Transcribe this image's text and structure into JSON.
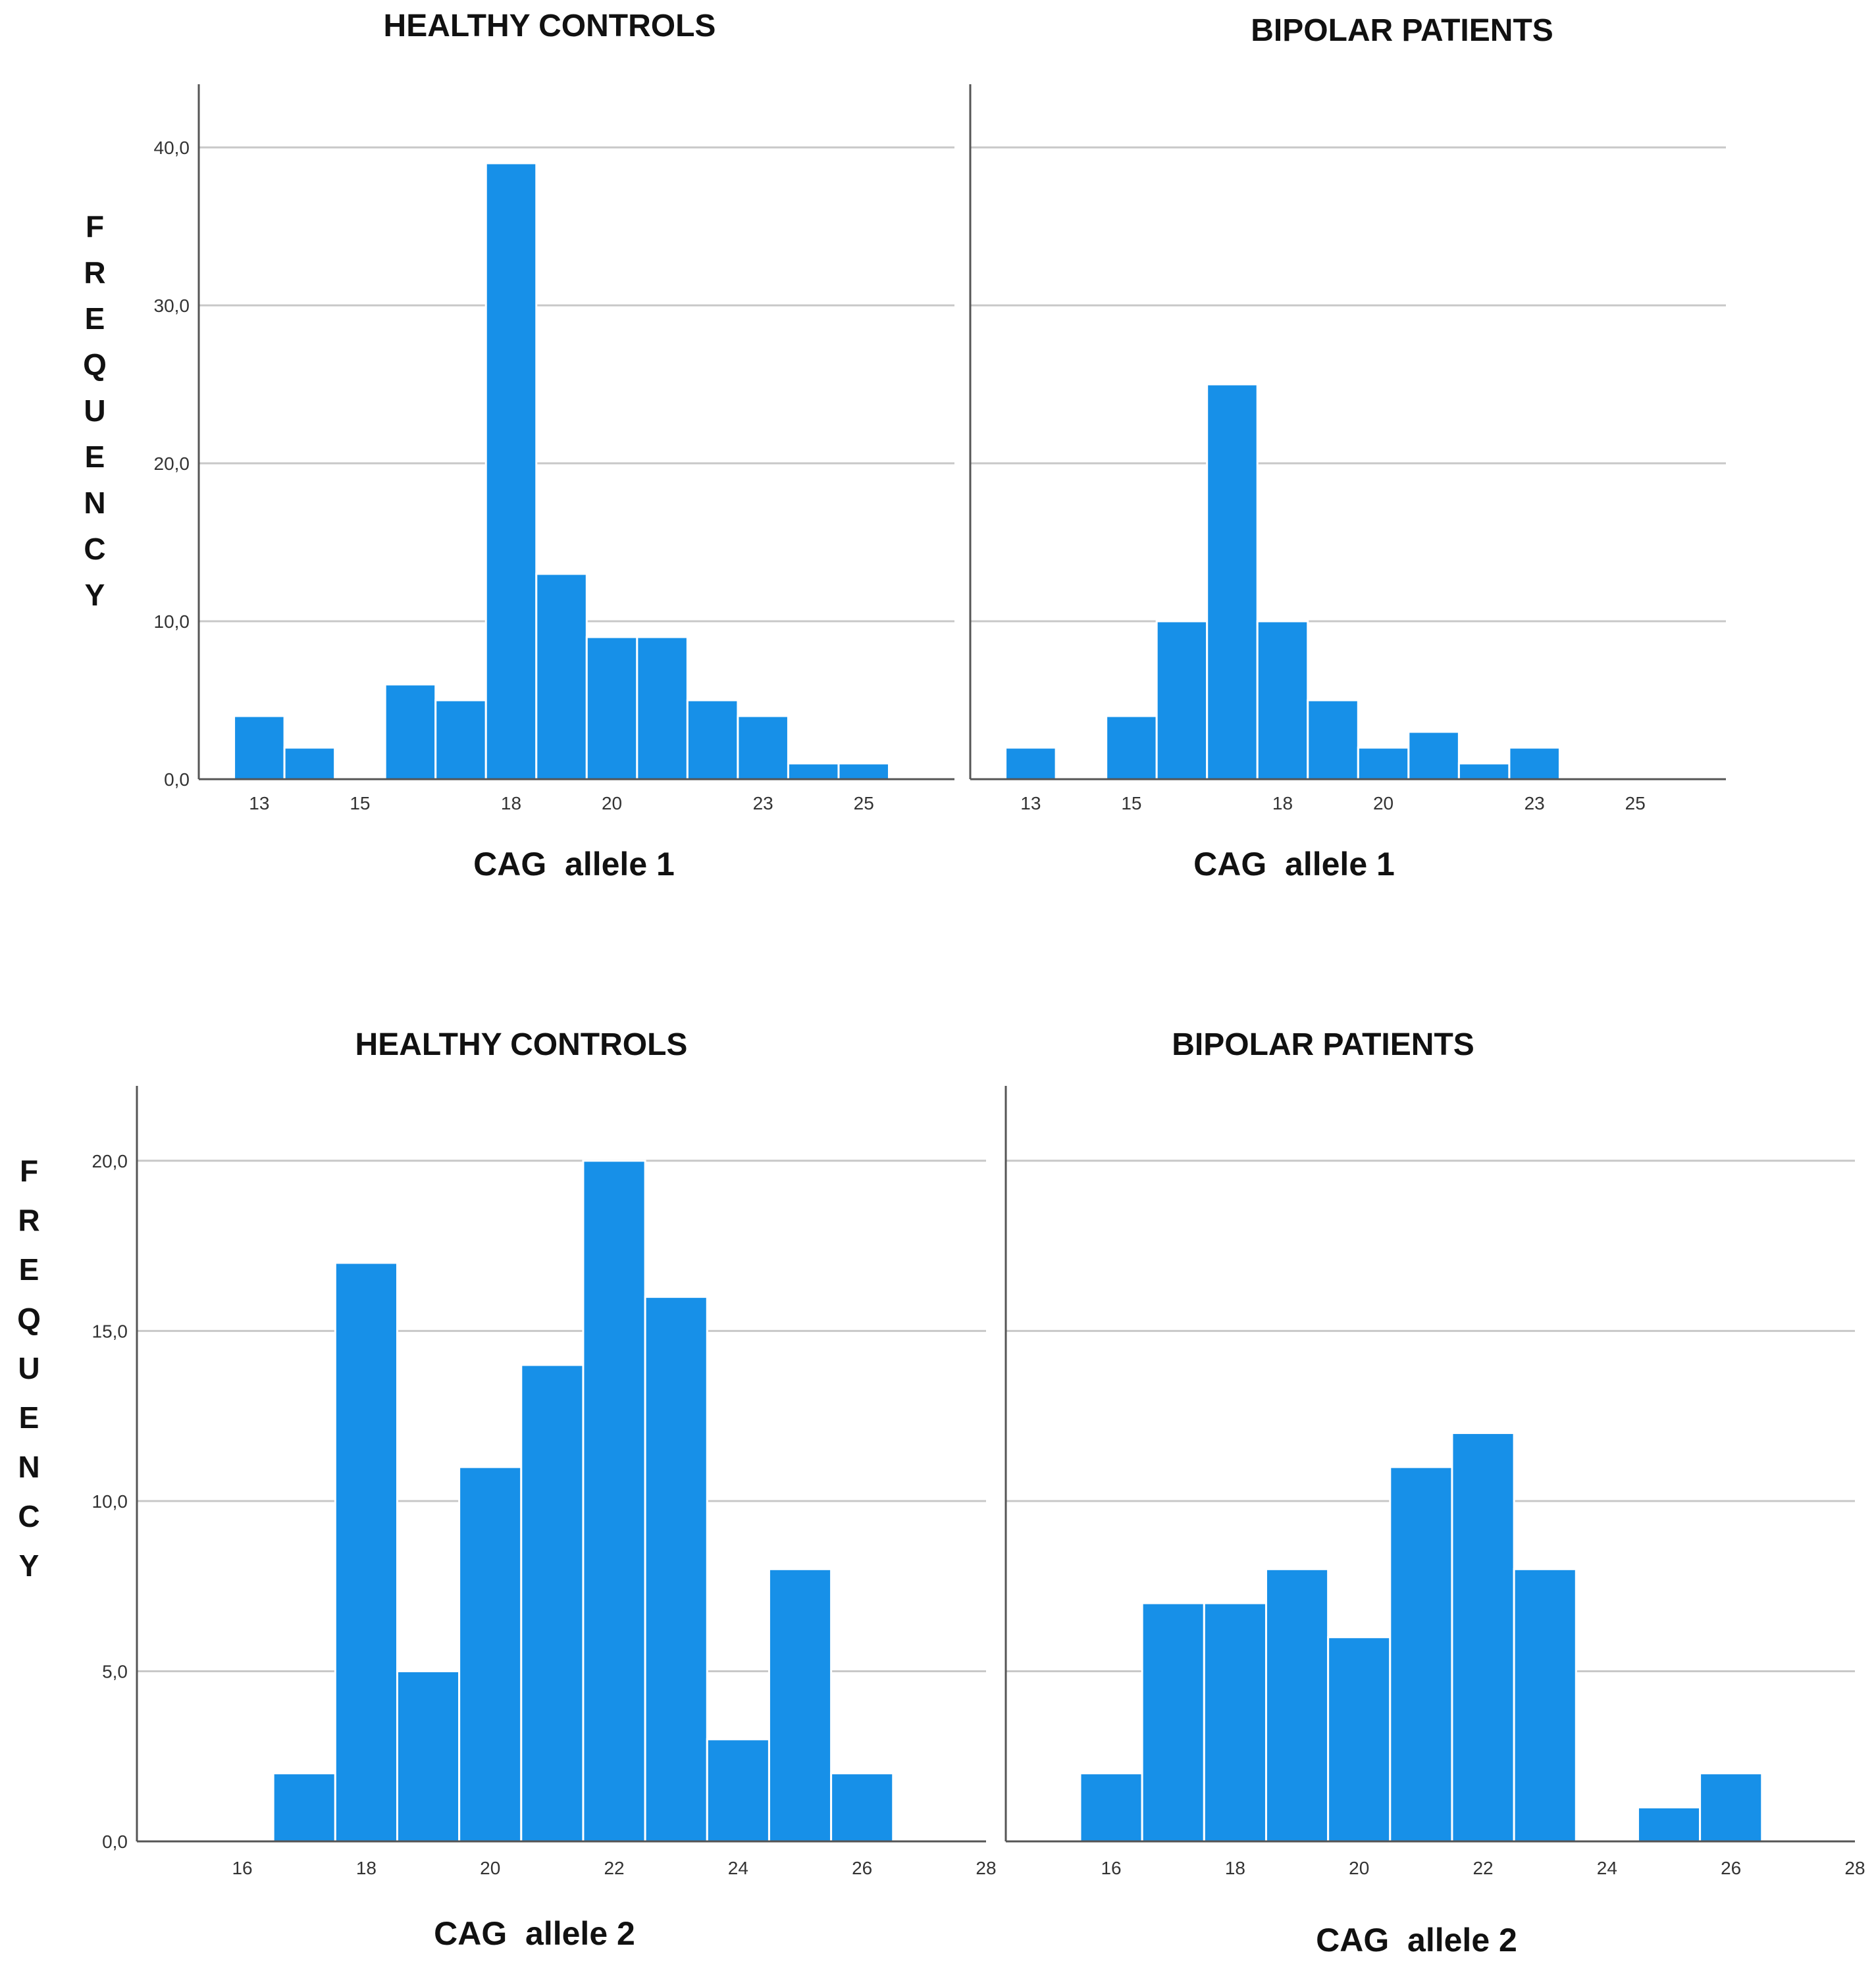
{
  "chart_data": [
    {
      "type": "bar",
      "title": "HEALTHY CONTROLS",
      "xlabel": "CAG  allele 1",
      "ylabel": "FREQUENCY",
      "categories": [
        "13",
        "14",
        "15",
        "16",
        "17",
        "18",
        "19",
        "20",
        "21",
        "22",
        "23",
        "24",
        "25"
      ],
      "values": [
        4,
        2,
        0,
        6,
        5,
        39,
        13,
        9,
        9,
        5,
        4,
        1,
        1
      ],
      "xlim": [
        11.8,
        26.8
      ],
      "xticks": [
        13,
        15,
        18,
        20,
        23,
        25
      ],
      "xtick_labels": [
        "13",
        "15",
        "18",
        "20",
        "23",
        "25"
      ],
      "ylim": [
        0,
        44
      ],
      "yticks": [
        0,
        10,
        20,
        30,
        40
      ],
      "ytick_labels": [
        "0,0",
        "10,0",
        "20,0",
        "30,0",
        "40,0"
      ],
      "grid": true
    },
    {
      "type": "bar",
      "title": "BIPOLAR PATIENTS",
      "xlabel": "CAG  allele 1",
      "ylabel": "FREQUENCY",
      "categories": [
        "13",
        "14",
        "15",
        "16",
        "17",
        "18",
        "19",
        "20",
        "21",
        "22",
        "23",
        "24",
        "25"
      ],
      "values": [
        2,
        0,
        4,
        10,
        25,
        10,
        5,
        2,
        3,
        1,
        2,
        0,
        0
      ],
      "xlim": [
        11.8,
        26.8
      ],
      "xticks": [
        13,
        15,
        18,
        20,
        23,
        25
      ],
      "xtick_labels": [
        "13",
        "15",
        "18",
        "20",
        "23",
        "25"
      ],
      "ylim": [
        0,
        44
      ],
      "yticks": [
        0,
        10,
        20,
        30,
        40
      ],
      "ytick_labels": [
        "0,0",
        "10,0",
        "20,0",
        "30,0",
        "40,0"
      ],
      "grid": true
    },
    {
      "type": "bar",
      "title": "HEALTHY CONTROLS",
      "xlabel": "CAG  allele 2",
      "ylabel": "FREQUENCY",
      "categories": [
        "17",
        "18",
        "19",
        "20",
        "21",
        "22",
        "23",
        "24",
        "25",
        "26"
      ],
      "values": [
        2,
        17,
        5,
        11,
        14,
        20,
        16,
        3,
        8,
        2
      ],
      "xlim": [
        14.3,
        28.0
      ],
      "xticks": [
        16,
        18,
        20,
        22,
        24,
        26,
        28
      ],
      "xtick_labels": [
        "16",
        "18",
        "20",
        "22",
        "24",
        "26",
        "28"
      ],
      "ylim": [
        0,
        22.2
      ],
      "yticks": [
        0,
        5,
        10,
        15,
        20
      ],
      "ytick_labels": [
        "0,0",
        "5,0",
        "10,0",
        "15,0",
        "20,0"
      ],
      "grid": true
    },
    {
      "type": "bar",
      "title": "BIPOLAR PATIENTS",
      "xlabel": "CAG  allele 2",
      "ylabel": "FREQUENCY",
      "categories": [
        "16",
        "17",
        "18",
        "19",
        "20",
        "21",
        "22",
        "23",
        "24",
        "25",
        "26"
      ],
      "values": [
        2,
        7,
        7,
        8,
        6,
        11,
        12,
        8,
        0,
        1,
        2
      ],
      "xlim": [
        14.3,
        28.0
      ],
      "xticks": [
        16,
        18,
        20,
        22,
        24,
        26,
        28
      ],
      "xtick_labels": [
        "16",
        "18",
        "20",
        "22",
        "24",
        "26",
        "28"
      ],
      "ylim": [
        0,
        22.2
      ],
      "yticks": [
        0,
        5,
        10,
        15,
        20
      ],
      "ytick_labels": [
        "0,0",
        "5,0",
        "10,0",
        "15,0",
        "20,0"
      ],
      "grid": true
    }
  ],
  "ylabel_letters": [
    "F",
    "R",
    "E",
    "Q",
    "U",
    "E",
    "N",
    "C",
    "Y"
  ],
  "bar_color": "#1790e8"
}
